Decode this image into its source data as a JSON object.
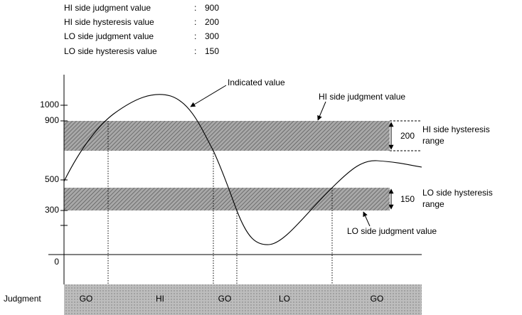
{
  "parameters": [
    {
      "label": "HI side judgment value",
      "value": 900
    },
    {
      "label": "HI side hysteresis value",
      "value": 200
    },
    {
      "label": "LO side judgment value",
      "value": 300
    },
    {
      "label": "LO side hysteresis value",
      "value": 150
    }
  ],
  "separator": ":",
  "axis_labels": [
    "1000",
    "900",
    "500",
    "300",
    "0"
  ],
  "annotations": {
    "indicated": "Indicated value",
    "hi_judgment": "HI side judgment value",
    "hi_range_value": 200,
    "hi_range_label": [
      "HI side hysteresis",
      "range"
    ],
    "lo_range_value": 150,
    "lo_range_label": [
      "LO side hysteresis",
      "range"
    ],
    "lo_judgment": "LO side judgment value"
  },
  "judgment": {
    "label": "Judgment",
    "states": [
      "GO",
      "HI",
      "GO",
      "LO",
      "GO"
    ]
  }
}
